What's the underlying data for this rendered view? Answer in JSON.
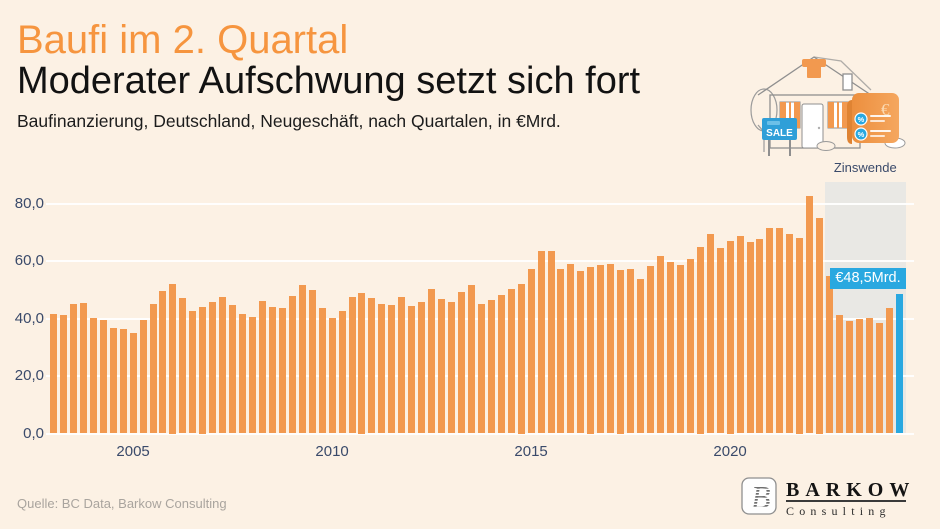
{
  "header": {
    "kicker": "Baufi im 2. Quartal",
    "title": "Moderater Aufschwung setzt sich fort",
    "subtitle": "Baufinanzierung, Deutschland, Neugeschäft, nach Quartalen, in €Mrd."
  },
  "annotation": {
    "zinswende_label": "Zinswende",
    "value_label": "€48,5Mrd."
  },
  "illustration": {
    "sale_sign": "SALE",
    "euro_symbol": "€",
    "percent_symbol": "%"
  },
  "footer": {
    "source": "Quelle: BC Data, Barkow Consulting",
    "logo": {
      "name": "BARKOW",
      "sub": "Consulting",
      "monogram": "B"
    }
  },
  "colors": {
    "background": "#fcf1e4",
    "accent_orange": "#f6953f",
    "bar_orange": "#f2994f",
    "highlight_blue": "#29a8e0",
    "axis_text": "#3a4a6a",
    "zinswende_gray": "#e9e8e4",
    "gridline": "#ffffff",
    "source_gray": "#a9a49e"
  },
  "chart_data": {
    "type": "bar",
    "title": "Baufinanzierung, Deutschland, Neugeschäft, nach Quartalen, in €Mrd.",
    "xlabel": "",
    "ylabel": "",
    "ylim": [
      0,
      85
    ],
    "grid": true,
    "x": [
      "2003 Q1",
      "2003 Q2",
      "2003 Q3",
      "2003 Q4",
      "2004 Q1",
      "2004 Q2",
      "2004 Q3",
      "2004 Q4",
      "2005 Q1",
      "2005 Q2",
      "2005 Q3",
      "2005 Q4",
      "2006 Q1",
      "2006 Q2",
      "2006 Q3",
      "2006 Q4",
      "2007 Q1",
      "2007 Q2",
      "2007 Q3",
      "2007 Q4",
      "2008 Q1",
      "2008 Q2",
      "2008 Q3",
      "2008 Q4",
      "2009 Q1",
      "2009 Q2",
      "2009 Q3",
      "2009 Q4",
      "2010 Q1",
      "2010 Q2",
      "2010 Q3",
      "2010 Q4",
      "2011 Q1",
      "2011 Q2",
      "2011 Q3",
      "2011 Q4",
      "2012 Q1",
      "2012 Q2",
      "2012 Q3",
      "2012 Q4",
      "2013 Q1",
      "2013 Q2",
      "2013 Q3",
      "2013 Q4",
      "2014 Q1",
      "2014 Q2",
      "2014 Q3",
      "2014 Q4",
      "2015 Q1",
      "2015 Q2",
      "2015 Q3",
      "2015 Q4",
      "2016 Q1",
      "2016 Q2",
      "2016 Q3",
      "2016 Q4",
      "2017 Q1",
      "2017 Q2",
      "2017 Q3",
      "2017 Q4",
      "2018 Q1",
      "2018 Q2",
      "2018 Q3",
      "2018 Q4",
      "2019 Q1",
      "2019 Q2",
      "2019 Q3",
      "2019 Q4",
      "2020 Q1",
      "2020 Q2",
      "2020 Q3",
      "2020 Q4",
      "2021 Q1",
      "2021 Q2",
      "2021 Q3",
      "2021 Q4",
      "2022 Q1",
      "2022 Q2",
      "2022 Q3",
      "2022 Q4",
      "2023 Q1",
      "2023 Q2",
      "2023 Q3",
      "2023 Q4",
      "2024 Q1",
      "2024 Q2"
    ],
    "values": [
      41.7,
      41.3,
      44.9,
      45.3,
      40.1,
      39.4,
      36.7,
      36.4,
      35.1,
      39.4,
      44.9,
      49.7,
      52.0,
      47.1,
      42.7,
      44.0,
      45.8,
      47.6,
      44.7,
      41.5,
      40.5,
      46.2,
      44.1,
      43.6,
      47.7,
      51.7,
      49.8,
      43.5,
      40.3,
      42.5,
      47.5,
      49.0,
      47.1,
      44.9,
      44.8,
      47.6,
      44.3,
      45.7,
      50.1,
      46.8,
      45.8,
      49.1,
      51.8,
      45.1,
      46.3,
      48.1,
      50.4,
      52.0,
      57.2,
      63.4,
      63.6,
      57.1,
      58.9,
      56.4,
      58.0,
      58.7,
      58.9,
      57.0,
      57.1,
      53.9,
      58.3,
      61.6,
      59.8,
      58.6,
      60.8,
      65.0,
      69.5,
      64.6,
      67.0,
      68.8,
      66.7,
      67.5,
      71.6,
      71.5,
      69.3,
      68.0,
      82.7,
      75.0,
      54.7,
      41.1,
      39.1,
      39.7,
      40.3,
      38.6,
      43.7,
      48.5
    ],
    "y_ticks": [
      {
        "label": "0,0",
        "value": 0
      },
      {
        "label": "20,0",
        "value": 20
      },
      {
        "label": "40,0",
        "value": 40
      },
      {
        "label": "60,0",
        "value": 60
      },
      {
        "label": "80,0",
        "value": 80
      }
    ],
    "x_ticks": [
      {
        "label": "2005",
        "index": 8
      },
      {
        "label": "2010",
        "index": 28
      },
      {
        "label": "2015",
        "index": 48
      },
      {
        "label": "2020",
        "index": 68
      }
    ],
    "highlight_last_value": 48.5,
    "highlight_last_label": "€48,5Mrd.",
    "zinswende_start_index": 78,
    "legend": null
  }
}
